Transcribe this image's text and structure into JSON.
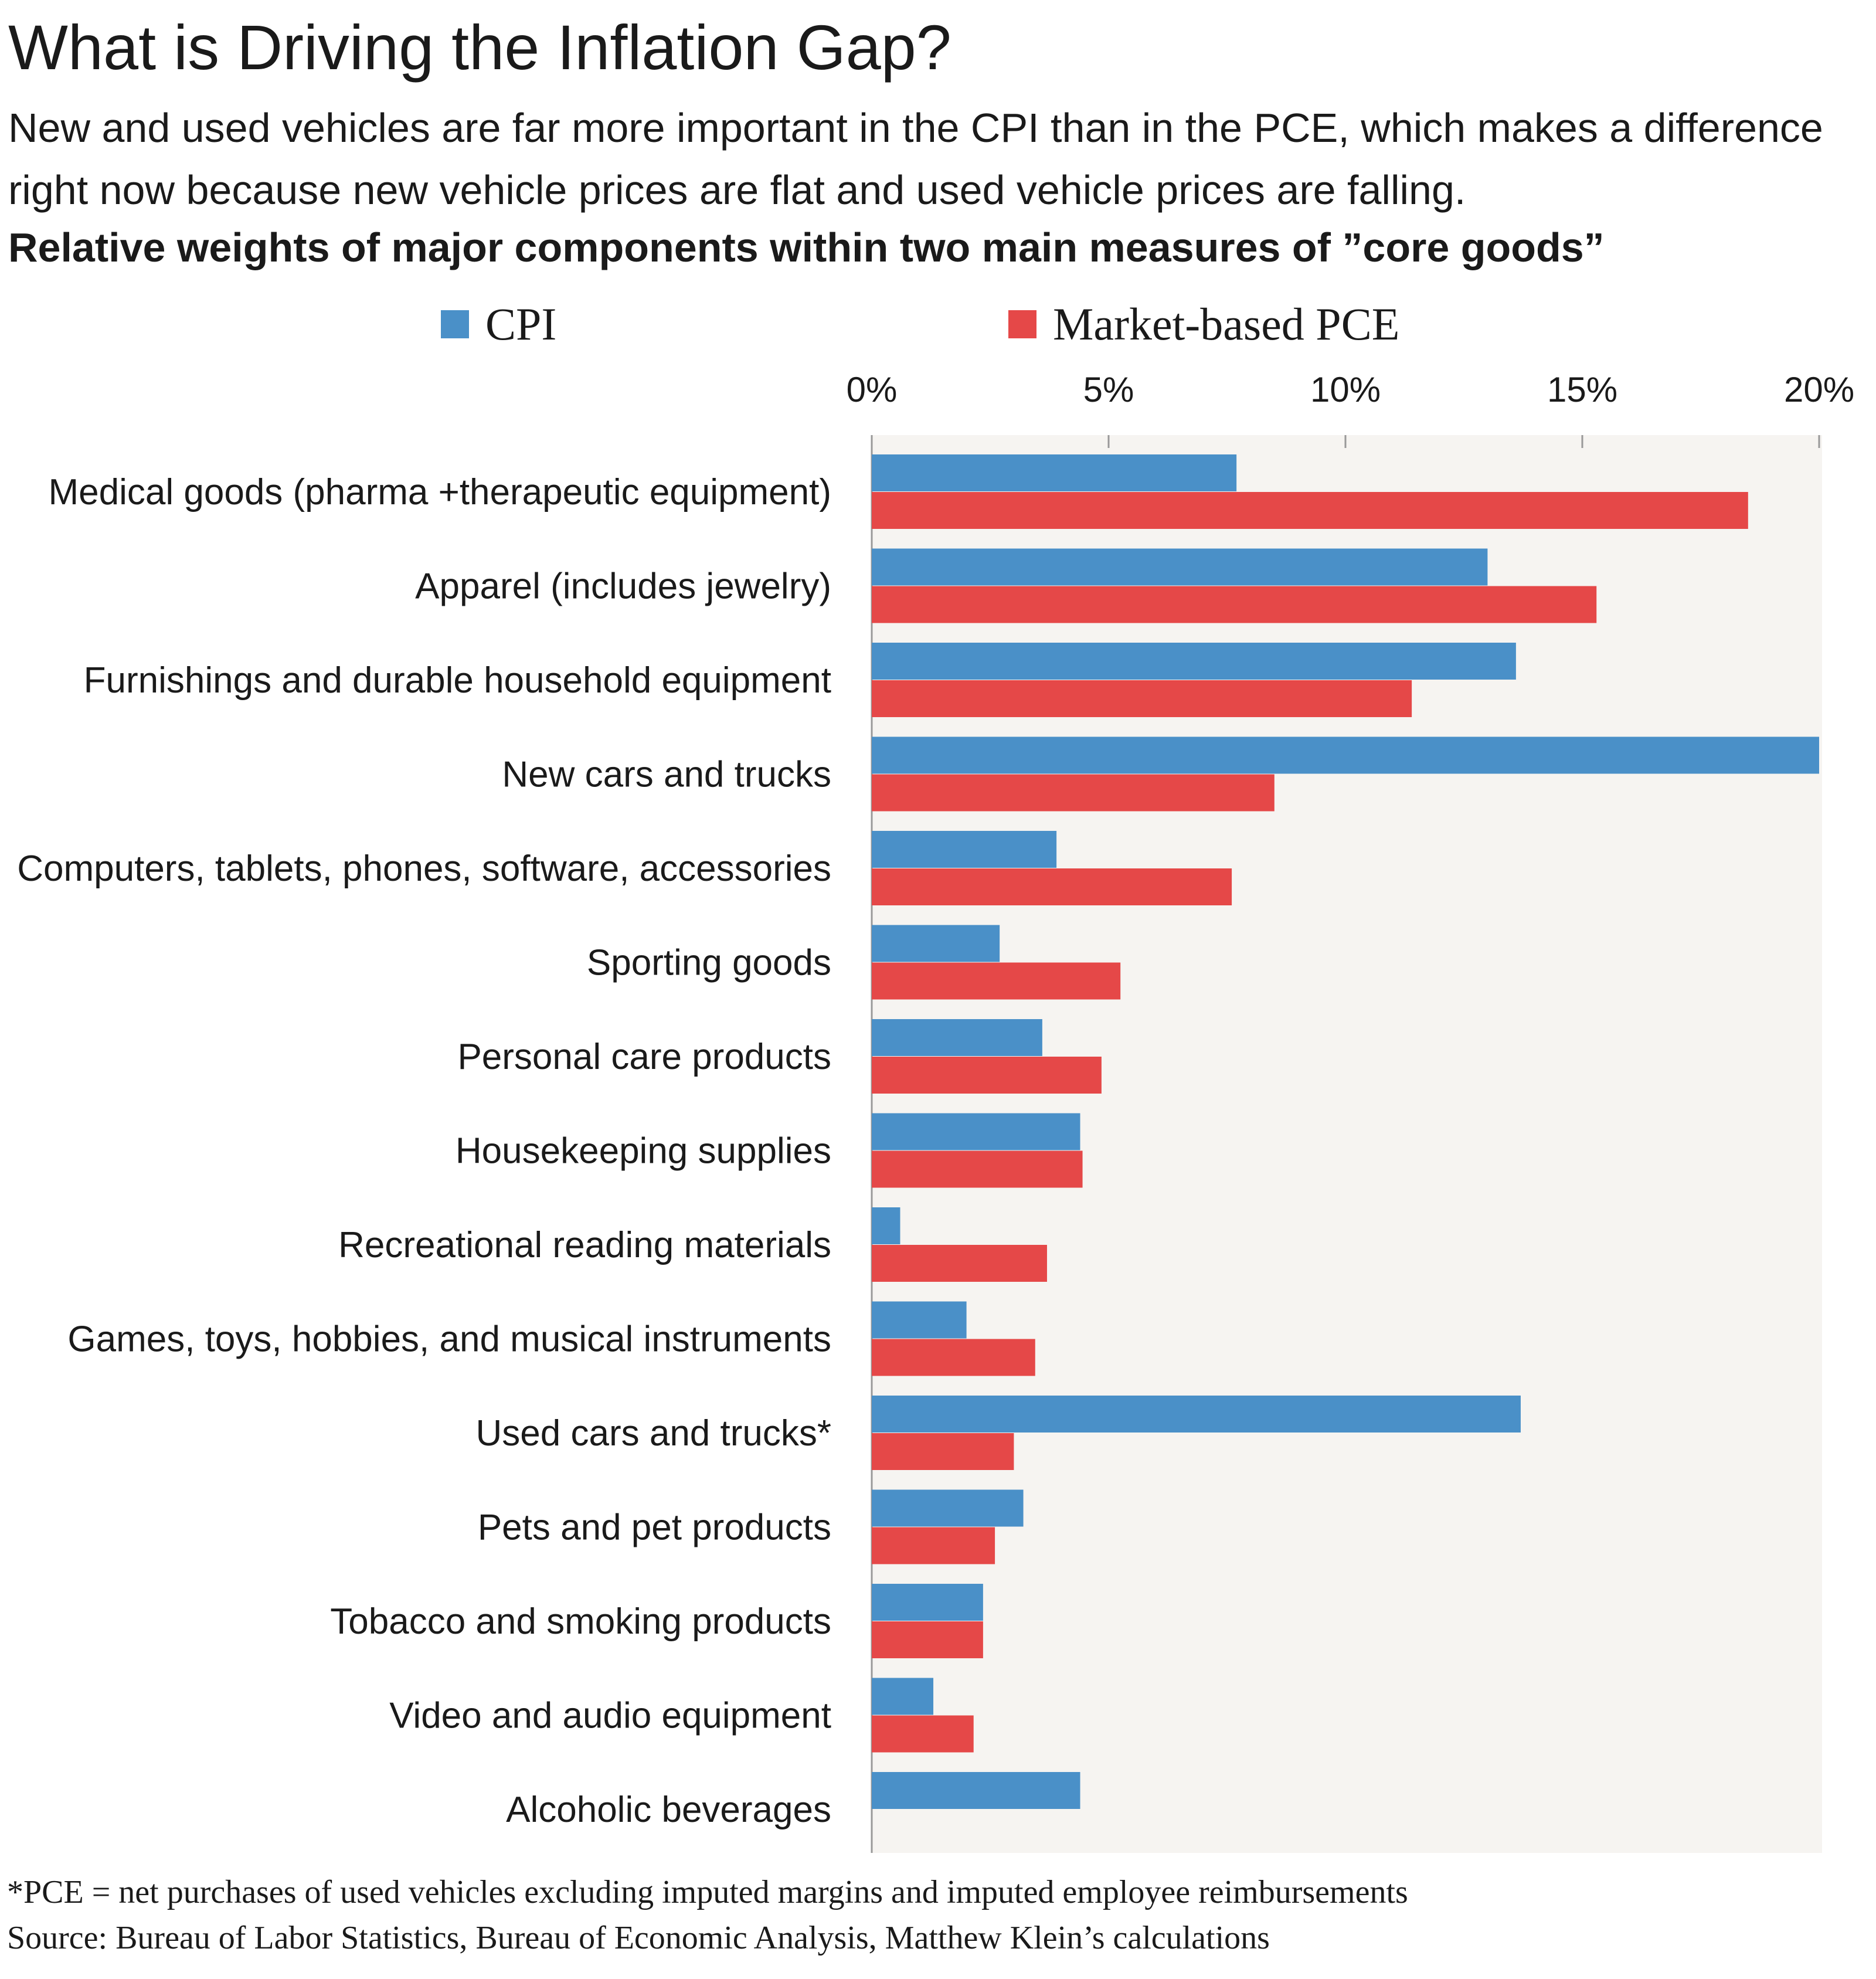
{
  "title": "What is Driving the Inflation Gap?",
  "subtitle": "New and used vehicles are far more important in the CPI than in the PCE, which makes a difference right now because new vehicle prices are flat and used vehicle prices are falling.",
  "chart_heading": "Relative weights of major components within two main measures of ”core goods”",
  "legend": {
    "cpi_label": "CPI",
    "pce_label": "Market-based PCE"
  },
  "colors": {
    "cpi": "#4a90c8",
    "pce": "#e54848",
    "plot_background": "#f6f4f1",
    "axis": "#999999"
  },
  "footnote": {
    "line1": "*PCE = net purchases of used vehicles excluding imputed margins and imputed employee reimbursements",
    "line2": "Source: Bureau of Labor Statistics, Bureau of Economic Analysis, Matthew Klein’s calculations"
  },
  "chart_data": {
    "type": "bar",
    "orientation": "horizontal",
    "title": "Relative weights of major components within two main measures of ”core goods”",
    "xlabel": "",
    "ylabel": "",
    "xlim": [
      0,
      20
    ],
    "x_ticks": [
      0,
      5,
      10,
      15,
      20
    ],
    "x_tick_labels": [
      "0%",
      "5%",
      "10%",
      "15%",
      "20%"
    ],
    "axis_position": "top",
    "legend_position": "top",
    "categories": [
      "Medical goods (pharma +therapeutic equipment)",
      "Apparel (includes jewelry)",
      "Furnishings and durable household equipment",
      "New cars and trucks",
      "Computers, tablets, phones, software, accessories",
      "Sporting goods",
      "Personal care products",
      "Housekeeping supplies",
      "Recreational reading materials",
      "Games, toys, hobbies, and musical instruments",
      "Used cars and trucks*",
      "Pets and pet products",
      "Tobacco and smoking products",
      "Video and audio equipment",
      "Alcoholic beverages"
    ],
    "series": [
      {
        "name": "CPI",
        "values": [
          7.7,
          13.0,
          13.6,
          20.0,
          3.9,
          2.7,
          3.6,
          4.4,
          0.6,
          2.0,
          13.7,
          3.2,
          2.35,
          1.3,
          4.4
        ]
      },
      {
        "name": "Market-based PCE",
        "values": [
          18.5,
          15.3,
          11.4,
          8.5,
          7.6,
          5.25,
          4.85,
          4.45,
          3.7,
          3.45,
          3.0,
          2.6,
          2.35,
          2.15,
          0
        ]
      }
    ]
  }
}
